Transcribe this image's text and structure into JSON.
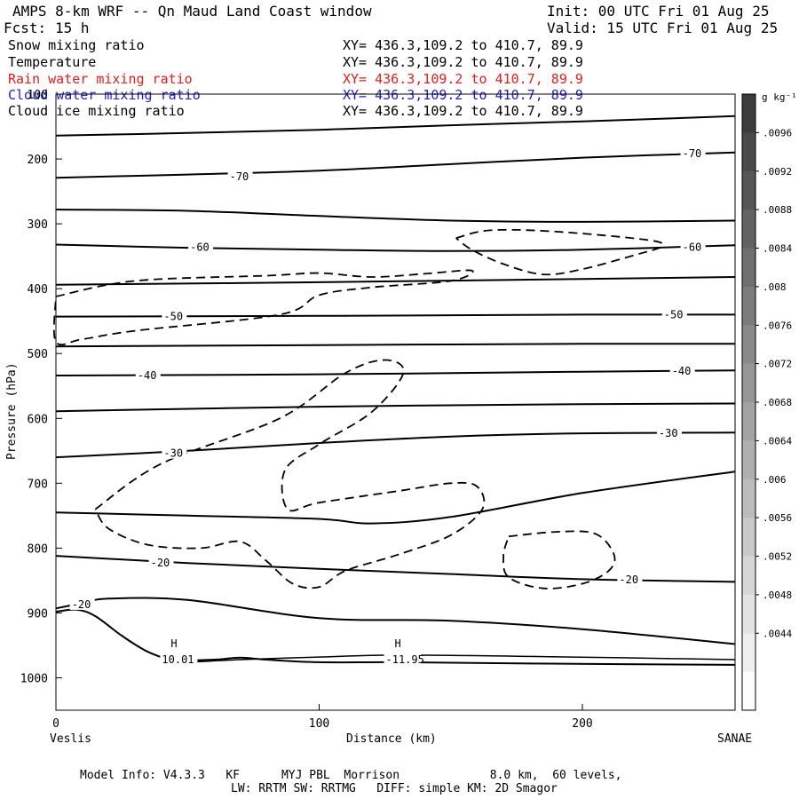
{
  "header": {
    "title": "AMPS 8-km WRF -- Qn Maud Land Coast window",
    "init": "Init: 00 UTC Fri 01 Aug 25",
    "fcst_label": "Fcst:",
    "fcst_value": "15 h",
    "valid": "Valid: 15 UTC Fri 01 Aug 25"
  },
  "fields": [
    {
      "name": "Snow mixing ratio",
      "xy": "XY= 436.3,109.2 to 410.7, 89.9",
      "color": "#000000"
    },
    {
      "name": "Temperature",
      "xy": "XY= 436.3,109.2 to 410.7, 89.9",
      "color": "#000000"
    },
    {
      "name": "Rain water mixing ratio",
      "xy": "XY= 436.3,109.2 to 410.7, 89.9",
      "color": "#e02020"
    },
    {
      "name": "Cloud water mixing ratio",
      "xy": "XY= 436.3,109.2 to 410.7, 89.9",
      "color": "#2020d0"
    },
    {
      "name": "Cloud ice mixing ratio",
      "xy": "XY= 436.3,109.2 to 410.7, 89.9",
      "color": "#000000"
    }
  ],
  "colorbar": {
    "unit": "g kg⁻¹",
    "labels": [
      ".0096",
      ".0092",
      ".0088",
      ".0084",
      ".008",
      ".0076",
      ".0072",
      ".0068",
      ".0064",
      ".006",
      ".0056",
      ".0052",
      ".0048",
      ".0044"
    ]
  },
  "footer": {
    "line1": "Model Info: V4.3.3   KF      MYJ PBL  Morrison             8.0 km,  60 levels,",
    "line2": "LW: RRTM SW: RRTMG   DIFF: simple KM: 2D Smagor"
  },
  "chart_data": {
    "type": "line",
    "xlabel": "Distance (km)",
    "ylabel": "Pressure (hPa)",
    "xlim": [
      0,
      258
    ],
    "ylim": [
      1050,
      100
    ],
    "x_ticks": [
      0,
      100,
      200
    ],
    "y_ticks": [
      100,
      200,
      300,
      400,
      500,
      600,
      700,
      800,
      900,
      1000
    ],
    "x_start_label": "Veslis",
    "x_end_label": "SANAE",
    "temperature_isotherms": [
      {
        "label": "",
        "points": [
          [
            0,
            164
          ],
          [
            50,
            160
          ],
          [
            100,
            155
          ],
          [
            150,
            148
          ],
          [
            200,
            142
          ],
          [
            258,
            134
          ]
        ]
      },
      {
        "label": "-70",
        "points": [
          [
            0,
            229
          ],
          [
            50,
            224
          ],
          [
            100,
            218
          ],
          [
            150,
            208
          ],
          [
            200,
            198
          ],
          [
            258,
            190
          ]
        ]
      },
      {
        "label": "",
        "points": [
          [
            0,
            278
          ],
          [
            50,
            280
          ],
          [
            100,
            288
          ],
          [
            150,
            295
          ],
          [
            200,
            297
          ],
          [
            258,
            295
          ]
        ]
      },
      {
        "label": "-60",
        "points": [
          [
            0,
            332
          ],
          [
            50,
            337
          ],
          [
            100,
            340
          ],
          [
            150,
            342
          ],
          [
            200,
            340
          ],
          [
            258,
            333
          ]
        ]
      },
      {
        "label": "",
        "points": [
          [
            0,
            394
          ],
          [
            100,
            390
          ],
          [
            200,
            385
          ],
          [
            258,
            382
          ]
        ]
      },
      {
        "label": "-50",
        "points": [
          [
            0,
            443
          ],
          [
            100,
            442
          ],
          [
            200,
            440
          ],
          [
            258,
            440
          ]
        ]
      },
      {
        "label": "",
        "points": [
          [
            0,
            489
          ],
          [
            100,
            487
          ],
          [
            200,
            485
          ],
          [
            258,
            485
          ]
        ]
      },
      {
        "label": "-40",
        "points": [
          [
            0,
            534
          ],
          [
            100,
            532
          ],
          [
            200,
            528
          ],
          [
            258,
            526
          ]
        ]
      },
      {
        "label": "",
        "points": [
          [
            0,
            589
          ],
          [
            100,
            582
          ],
          [
            200,
            578
          ],
          [
            258,
            577
          ]
        ]
      },
      {
        "label": "-30",
        "points": [
          [
            0,
            660
          ],
          [
            50,
            650
          ],
          [
            100,
            638
          ],
          [
            150,
            628
          ],
          [
            200,
            623
          ],
          [
            258,
            622
          ]
        ]
      },
      {
        "label": "",
        "points": [
          [
            0,
            745
          ],
          [
            50,
            750
          ],
          [
            100,
            755
          ],
          [
            120,
            762
          ],
          [
            150,
            752
          ],
          [
            200,
            715
          ],
          [
            258,
            682
          ]
        ]
      },
      {
        "label": "-20",
        "points": [
          [
            0,
            812
          ],
          [
            50,
            823
          ],
          [
            100,
            832
          ],
          [
            150,
            840
          ],
          [
            200,
            848
          ],
          [
            258,
            852
          ]
        ]
      },
      {
        "label": "-20",
        "points": [
          [
            0,
            893
          ],
          [
            10,
            885
          ],
          [
            20,
            878
          ],
          [
            50,
            880
          ],
          [
            100,
            908
          ],
          [
            150,
            912
          ],
          [
            200,
            925
          ],
          [
            258,
            948
          ]
        ]
      }
    ],
    "surface_highs": [
      {
        "label": "H",
        "value": "10.01",
        "x": 45,
        "p": 972
      },
      {
        "label": "H",
        "value": "-11.95",
        "x": 130,
        "p": 972
      }
    ],
    "contour_labels": [
      {
        "text": "-70",
        "x": 70,
        "p": 227
      },
      {
        "text": "-70",
        "x": 242,
        "p": 192
      },
      {
        "text": "-60",
        "x": 55,
        "p": 336
      },
      {
        "text": "-60",
        "x": 242,
        "p": 336
      },
      {
        "text": "-50",
        "x": 45,
        "p": 443
      },
      {
        "text": "-50",
        "x": 235,
        "p": 440
      },
      {
        "text": "-40",
        "x": 35,
        "p": 534
      },
      {
        "text": "-40",
        "x": 238,
        "p": 527
      },
      {
        "text": "-30",
        "x": 45,
        "p": 654
      },
      {
        "text": "-30",
        "x": 233,
        "p": 623
      },
      {
        "text": "-20",
        "x": 40,
        "p": 823
      },
      {
        "text": "-20",
        "x": 218,
        "p": 849
      },
      {
        "text": "-20",
        "x": 10,
        "p": 887
      }
    ]
  }
}
